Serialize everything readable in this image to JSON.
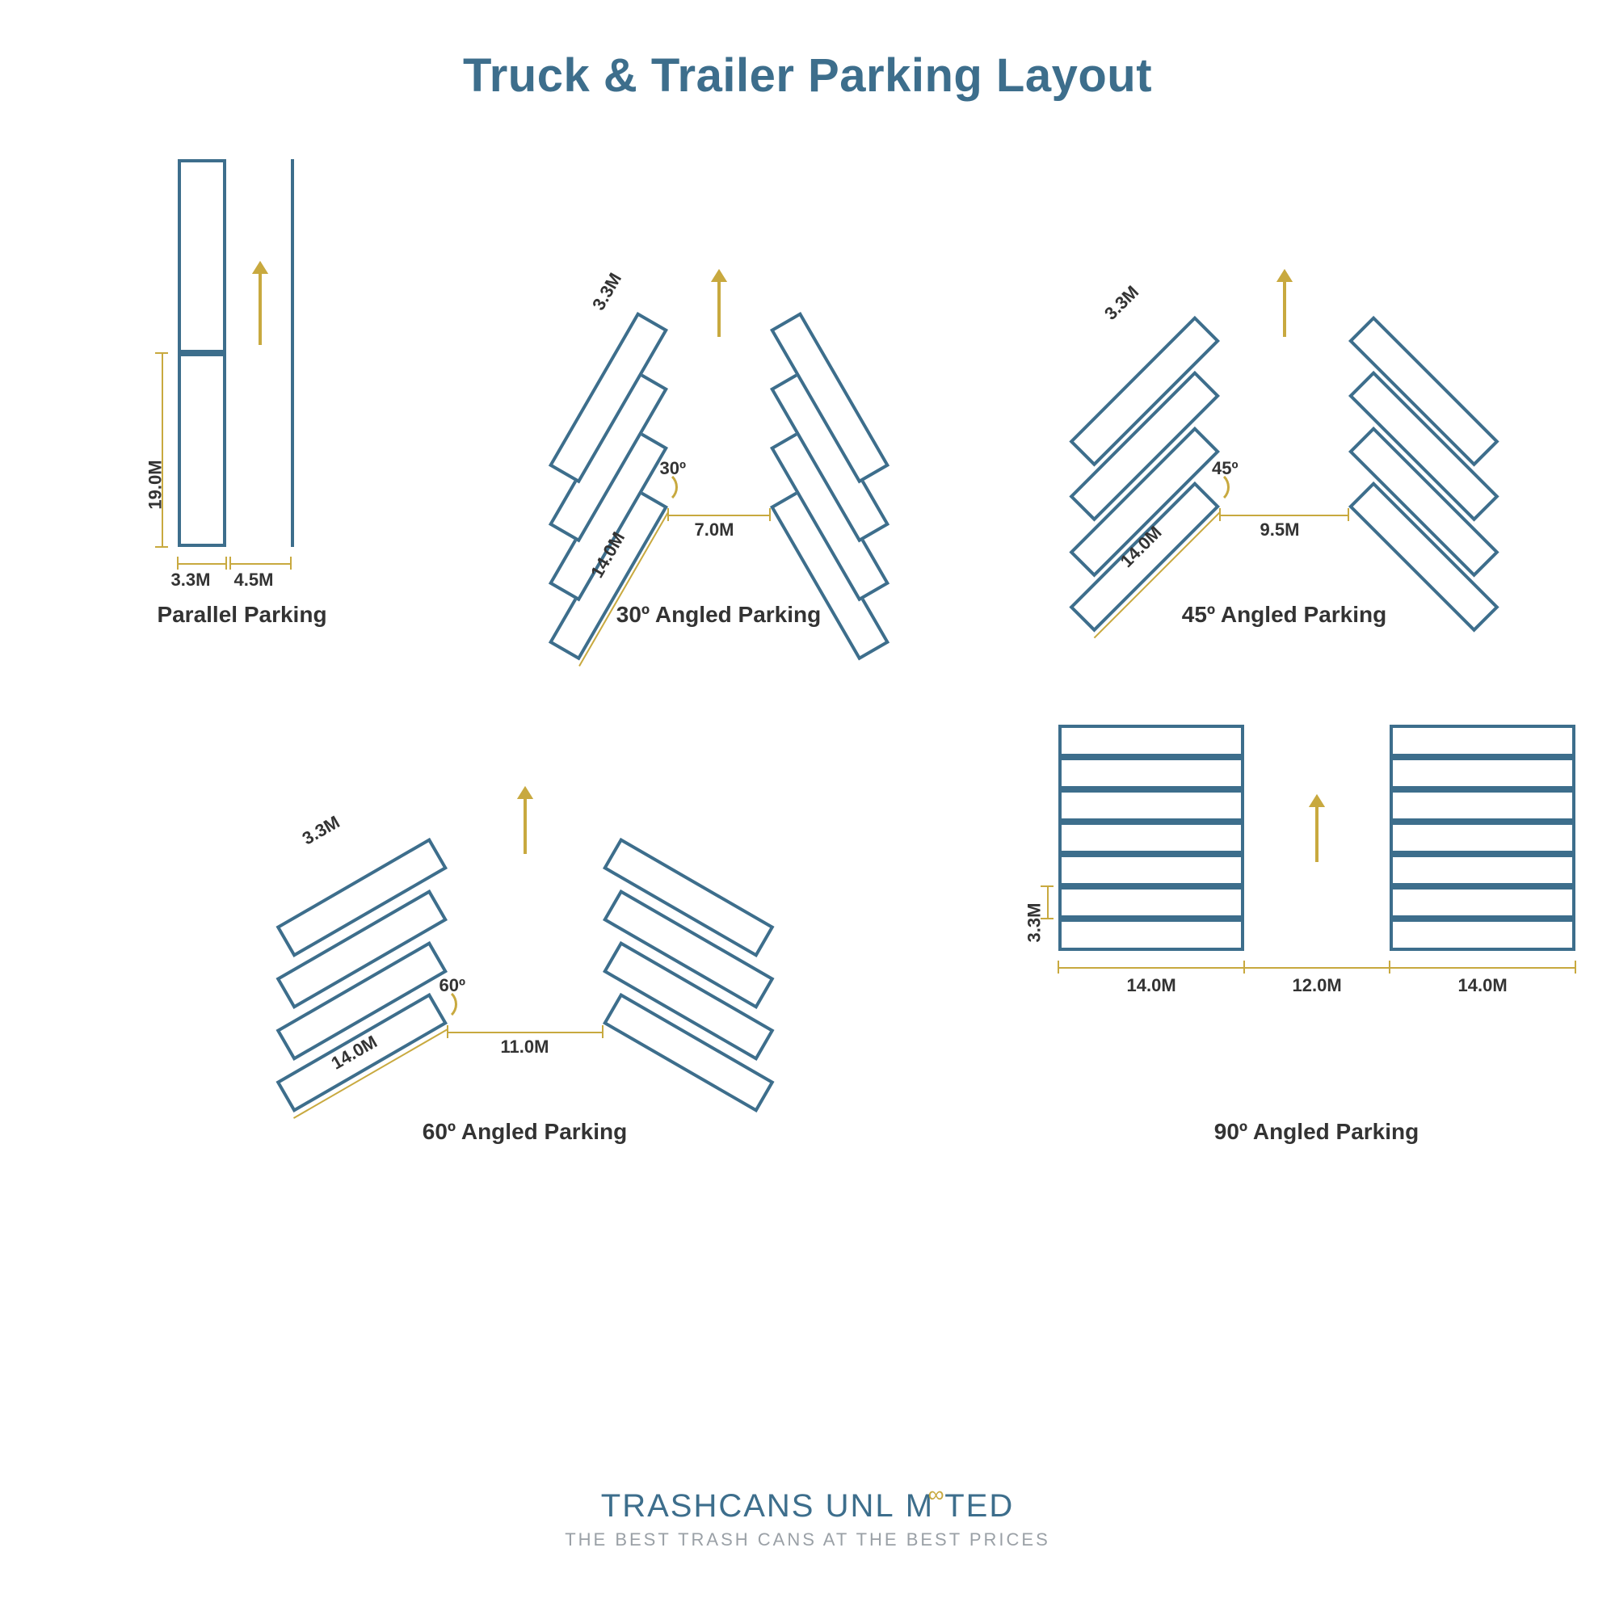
{
  "title": "Truck & Trailer Parking Layout",
  "colors": {
    "primary": "#3d6e8c",
    "accent": "#c8a93f",
    "text_dark": "#333333",
    "text_light": "#9aa0a6",
    "bg": "#ffffff"
  },
  "layouts": {
    "parallel": {
      "caption": "Parallel Parking",
      "length_label": "19.0M",
      "width_label": "3.3M",
      "lane_label": "4.5M"
    },
    "angle30": {
      "caption": "30º Angled Parking",
      "angle_label": "30º",
      "spacing_label": "3.3M",
      "depth_label": "14.0M",
      "aisle_label": "7.0M",
      "angle_deg": 30
    },
    "angle45": {
      "caption": "45º Angled Parking",
      "angle_label": "45º",
      "spacing_label": "3.3M",
      "depth_label": "14.0M",
      "aisle_label": "9.5M",
      "angle_deg": 45
    },
    "angle60": {
      "caption": "60º Angled Parking",
      "angle_label": "60º",
      "spacing_label": "3.3M",
      "depth_label": "14.0M",
      "aisle_label": "11.0M",
      "angle_deg": 60
    },
    "angle90": {
      "caption": "90º Angled Parking",
      "spacing_label": "3.3M",
      "depth_label_left": "14.0M",
      "aisle_label": "12.0M",
      "depth_label_right": "14.0M"
    }
  },
  "brand": {
    "part1": "TRASHCANS ",
    "part2": "UNL",
    "part3": "M",
    "part4": "TED",
    "infinity": "∞",
    "tagline": "THE BEST TRASH CANS AT THE BEST PRICES"
  },
  "styling": {
    "rect_border_width": 4,
    "title_fontsize": 58,
    "caption_fontsize": 28,
    "dim_fontsize": 22,
    "brand_fontsize": 40,
    "tagline_fontsize": 22
  }
}
